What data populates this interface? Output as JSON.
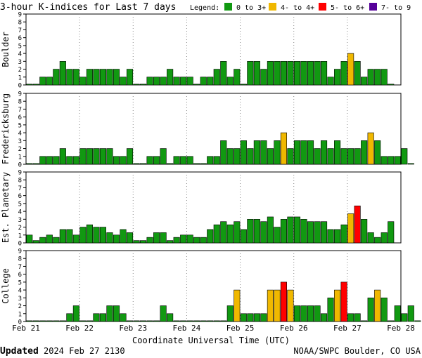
{
  "title": "3-hour K-indices for Last 7 days",
  "legend": {
    "label": "Legend:",
    "items": [
      {
        "text": "0 to 3+",
        "color": "#119911"
      },
      {
        "text": "4- to 4+",
        "color": "#f0b800"
      },
      {
        "text": "5- to 6+",
        "color": "#ff0000"
      },
      {
        "text": "7- to 9",
        "color": "#550099"
      }
    ]
  },
  "xlabel": "Coordinate Universal Time (UTC)",
  "day_labels": [
    "Feb 21",
    "Feb 22",
    "Feb 23",
    "Feb 24",
    "Feb 25",
    "Feb 26",
    "Feb 27",
    "Feb 28"
  ],
  "y_ticks": [
    "0",
    "1",
    "2",
    "3",
    "4",
    "5",
    "6",
    "7",
    "8",
    "9"
  ],
  "footer": {
    "updated_label": "Updated",
    "updated_value": "2024 Feb 27 2130",
    "credit": "NOAA/SWPC Boulder, CO USA"
  },
  "chart_data": [
    {
      "type": "bar",
      "name": "Boulder",
      "ylim": [
        0,
        9
      ],
      "values": [
        0.1,
        0.1,
        1,
        1,
        2,
        3,
        2,
        2,
        1,
        2,
        2,
        2,
        2,
        2,
        1,
        2,
        0.1,
        0.1,
        1,
        1,
        1,
        2,
        1,
        1,
        1,
        0.1,
        1,
        1,
        2,
        3,
        1,
        2,
        0.1,
        3,
        3,
        2,
        3,
        3,
        3,
        3,
        3,
        3,
        3,
        3,
        3,
        1,
        2,
        3,
        4,
        3,
        1,
        2,
        2,
        2,
        0.1
      ]
    },
    {
      "type": "bar",
      "name": "Fredericksburg",
      "ylim": [
        0,
        9
      ],
      "values": [
        0.1,
        0.1,
        1,
        1,
        1,
        2,
        1,
        1,
        2,
        2,
        2,
        2,
        2,
        1,
        1,
        2,
        0.1,
        0.1,
        1,
        1,
        2,
        0.1,
        1,
        1,
        1,
        0.1,
        0.1,
        1,
        1,
        3,
        2,
        2,
        3,
        2,
        3,
        3,
        2,
        3,
        4,
        2,
        3,
        3,
        3,
        2,
        3,
        2,
        3,
        2,
        2,
        2,
        3,
        4,
        3,
        1,
        1,
        1,
        2,
        0.1
      ]
    },
    {
      "type": "bar",
      "name": "Est. Planetary",
      "ylim": [
        0,
        9
      ],
      "values": [
        1,
        0.3,
        0.7,
        1,
        0.7,
        1.7,
        1.7,
        1,
        2,
        2.3,
        2,
        2,
        1.3,
        1,
        1.7,
        1.3,
        0.3,
        0.3,
        0.7,
        1.3,
        1.3,
        0.3,
        0.7,
        1,
        1,
        0.7,
        0.7,
        1.7,
        2.3,
        2.7,
        2.3,
        2.7,
        1.7,
        3,
        3,
        2.7,
        3.3,
        2,
        3,
        3.3,
        3.3,
        3,
        2.7,
        2.7,
        2.7,
        1.7,
        1.7,
        2.3,
        3.7,
        4.7,
        3,
        1.3,
        0.7,
        1.3,
        2.7
      ]
    },
    {
      "type": "bar",
      "name": "College",
      "ylim": [
        0,
        9
      ],
      "values": [
        0.1,
        0.1,
        0.1,
        0.1,
        0.1,
        0.1,
        1,
        2,
        0.1,
        0.1,
        1,
        1,
        2,
        2,
        1,
        0.1,
        0.1,
        0.1,
        0.1,
        0.1,
        2,
        1,
        0.1,
        0.1,
        0.1,
        0.1,
        0.1,
        0.1,
        0.1,
        0.1,
        2,
        4,
        1,
        1,
        1,
        1,
        4,
        4,
        5,
        4,
        2,
        2,
        2,
        2,
        1,
        3,
        4,
        5,
        1,
        1,
        0.1,
        3,
        4,
        3,
        0.1,
        2,
        1,
        2,
        0.1
      ]
    }
  ]
}
